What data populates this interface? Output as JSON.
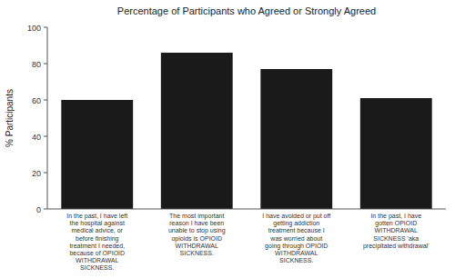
{
  "chart_data": {
    "type": "bar",
    "title": "Percentage of Participants who Agreed or Strongly Agreed",
    "y_label": "% Participants",
    "categories": [
      "In the past, I have left\nthe hospital against\nmedical advice, or\nbefore finishing\ntreatment I needed,\nbecause of OPIOID\nWITHDRAWAL\nSICKNESS.",
      "The most important\nreason I have been\nunable to stop using\nopioids is OPIOID\nWITHDRAWAL\nSICKNESS.",
      "I have avoided or put off\ngetting addiction\ntreatment because I\nwas worried about\ngoing through OPIOID\nWITHDRAWAL\nSICKNESS.",
      "In the past, I have\ngotten OPIOID\nWITHDRAWAL\nSICKNESS 'aka\nprecipitated withdrawal'"
    ],
    "values": [
      60,
      86,
      77,
      61
    ],
    "color": "#1a1a1a",
    "ylim": [
      0,
      100
    ],
    "yticks": [
      0,
      20,
      40,
      60,
      80,
      100
    ],
    "grid": false
  }
}
